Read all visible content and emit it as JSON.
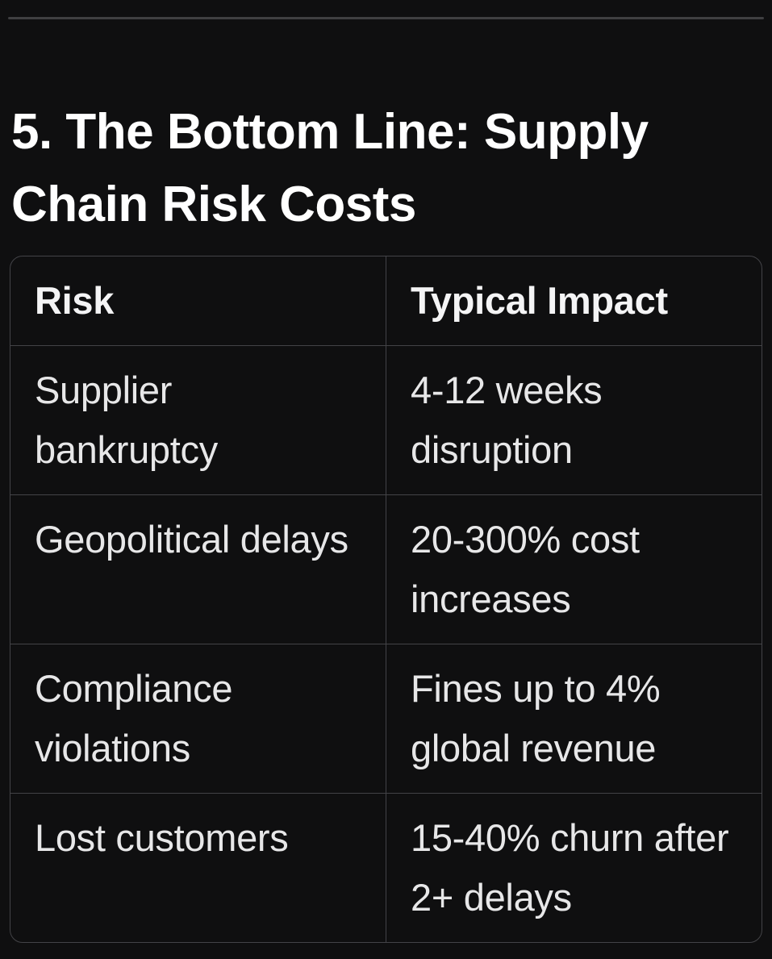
{
  "page": {
    "background_color": "#0f0f10",
    "divider_color": "#3f3f41",
    "table_border_color": "#434347",
    "heading_color": "#ffffff",
    "cell_text_color": "#e7e7e8"
  },
  "section": {
    "heading": "5. The Bottom Line: Supply Chain Risk Costs"
  },
  "table": {
    "header": {
      "risk": "Risk",
      "impact": "Typical Impact"
    },
    "rows": [
      {
        "risk": "Supplier bankruptcy",
        "impact": "4-12 weeks disruption"
      },
      {
        "risk": "Geopolitical delays",
        "impact": "20-300% cost increases"
      },
      {
        "risk": "Compliance violations",
        "impact": "Fines up to 4% global revenue"
      },
      {
        "risk": "Lost customers",
        "impact": "15-40% churn after 2+ delays"
      }
    ]
  }
}
